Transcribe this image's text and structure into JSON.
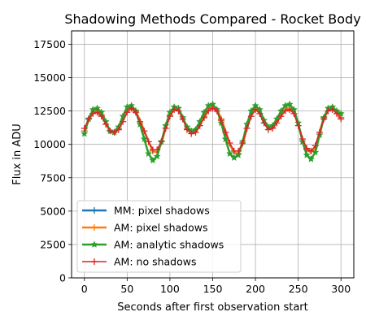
{
  "chart_data": {
    "type": "line",
    "title": "Shadowing Methods Compared - Rocket Body",
    "xlabel": "Seconds after first observation start",
    "ylabel": "Flux in ADU",
    "xlim": [
      -15,
      315
    ],
    "ylim": [
      0,
      18500
    ],
    "xticks": [
      0,
      50,
      100,
      150,
      200,
      250,
      300
    ],
    "yticks": [
      0,
      2500,
      5000,
      7500,
      10000,
      12500,
      15000,
      17500
    ],
    "grid": true,
    "legend_position": "lower-left",
    "series": [
      {
        "name": "MM: pixel shadows",
        "color": "#1f77b4",
        "marker": "+",
        "linewidth": 2.5,
        "markevery": 4,
        "x": [
          0,
          5,
          10,
          15,
          20,
          25,
          30,
          35,
          40,
          45,
          50,
          55,
          60,
          65,
          70,
          75,
          80,
          85,
          90,
          95,
          100,
          105,
          110,
          115,
          120,
          125,
          130,
          135,
          140,
          145,
          150,
          155,
          160,
          165,
          170,
          175,
          180,
          185,
          190,
          195,
          200,
          205,
          210,
          215,
          220,
          225,
          230,
          235,
          240,
          245,
          250,
          255,
          260,
          265,
          270,
          275,
          280,
          285,
          290,
          295,
          300
        ],
        "y": [
          11000,
          11900,
          12400,
          12500,
          12200,
          11600,
          11000,
          10900,
          11200,
          11800,
          12500,
          12800,
          12500,
          11800,
          11000,
          10200,
          9500,
          9400,
          10100,
          11200,
          12200,
          12700,
          12600,
          12000,
          11200,
          10800,
          10900,
          11400,
          12100,
          12600,
          12800,
          12600,
          11900,
          11000,
          10000,
          9400,
          9300,
          10000,
          11200,
          12200,
          12700,
          12400,
          11600,
          11200,
          11300,
          11700,
          12200,
          12600,
          12700,
          12400,
          11500,
          10400,
          9600,
          9400,
          9800,
          10900,
          12000,
          12600,
          12700,
          12400,
          12000
        ]
      },
      {
        "name": "AM: pixel shadows",
        "color": "#ff7f0e",
        "marker": "+",
        "linewidth": 2.5,
        "markevery": 4,
        "x": [
          0,
          5,
          10,
          15,
          20,
          25,
          30,
          35,
          40,
          45,
          50,
          55,
          60,
          65,
          70,
          75,
          80,
          85,
          90,
          95,
          100,
          105,
          110,
          115,
          120,
          125,
          130,
          135,
          140,
          145,
          150,
          155,
          160,
          165,
          170,
          175,
          180,
          185,
          190,
          195,
          200,
          205,
          210,
          215,
          220,
          225,
          230,
          235,
          240,
          245,
          250,
          255,
          260,
          265,
          270,
          275,
          280,
          285,
          290,
          295,
          300
        ],
        "y": [
          11000,
          11800,
          12400,
          12500,
          12200,
          11600,
          11000,
          10900,
          11200,
          11800,
          12500,
          12800,
          12500,
          11800,
          11000,
          10200,
          9500,
          9400,
          10100,
          11200,
          12200,
          12700,
          12600,
          12000,
          11200,
          10800,
          10900,
          11400,
          12100,
          12600,
          12800,
          12600,
          11900,
          11000,
          10000,
          9400,
          9300,
          10000,
          11200,
          12200,
          12700,
          12400,
          11700,
          11200,
          11300,
          11700,
          12200,
          12600,
          12700,
          12400,
          11500,
          10400,
          9600,
          9400,
          9800,
          10900,
          12000,
          12600,
          12700,
          12400,
          12000
        ]
      },
      {
        "name": "AM: analytic shadows",
        "color": "#2ca02c",
        "marker": "*",
        "linewidth": 2.5,
        "markevery": 1,
        "x": [
          0,
          5,
          10,
          15,
          20,
          25,
          30,
          35,
          40,
          45,
          50,
          55,
          60,
          65,
          70,
          75,
          80,
          85,
          90,
          95,
          100,
          105,
          110,
          115,
          120,
          125,
          130,
          135,
          140,
          145,
          150,
          155,
          160,
          165,
          170,
          175,
          180,
          185,
          190,
          195,
          200,
          205,
          210,
          215,
          220,
          225,
          230,
          235,
          240,
          245,
          250,
          255,
          260,
          265,
          270,
          275,
          280,
          285,
          290,
          295,
          300
        ],
        "y": [
          10800,
          11900,
          12600,
          12700,
          12400,
          11700,
          11000,
          10900,
          11300,
          12100,
          12800,
          12900,
          12500,
          11500,
          10400,
          9300,
          8800,
          9100,
          10200,
          11400,
          12400,
          12800,
          12700,
          12000,
          11300,
          11000,
          11100,
          11700,
          12400,
          12900,
          13000,
          12600,
          11600,
          10400,
          9300,
          9000,
          9200,
          10200,
          11500,
          12500,
          12900,
          12600,
          11800,
          11300,
          11400,
          11900,
          12500,
          12900,
          13000,
          12600,
          11600,
          10200,
          9200,
          8900,
          9400,
          10700,
          12000,
          12700,
          12800,
          12500,
          12300
        ]
      },
      {
        "name": "AM: no shadows",
        "color": "#d62728",
        "marker": "+",
        "linewidth": 1.5,
        "markevery": 1,
        "x": [
          0,
          5,
          10,
          15,
          20,
          25,
          30,
          35,
          40,
          45,
          50,
          55,
          60,
          65,
          70,
          75,
          80,
          85,
          90,
          95,
          100,
          105,
          110,
          115,
          120,
          125,
          130,
          135,
          140,
          145,
          150,
          155,
          160,
          165,
          170,
          175,
          180,
          185,
          190,
          195,
          200,
          205,
          210,
          215,
          220,
          225,
          230,
          235,
          240,
          245,
          250,
          255,
          260,
          265,
          270,
          275,
          280,
          285,
          290,
          295,
          300
        ],
        "y": [
          11200,
          11900,
          12300,
          12400,
          12100,
          11500,
          11000,
          10900,
          11100,
          11700,
          12400,
          12700,
          12400,
          11700,
          11000,
          10200,
          9600,
          9600,
          10200,
          11200,
          12100,
          12600,
          12500,
          11900,
          11100,
          10800,
          10900,
          11400,
          12000,
          12500,
          12700,
          12500,
          11800,
          10900,
          10100,
          9500,
          9500,
          10100,
          11200,
          12100,
          12600,
          12300,
          11600,
          11100,
          11200,
          11600,
          12100,
          12500,
          12600,
          12300,
          11400,
          10400,
          9700,
          9500,
          9900,
          10900,
          11900,
          12500,
          12600,
          12300,
          11900
        ]
      }
    ]
  }
}
